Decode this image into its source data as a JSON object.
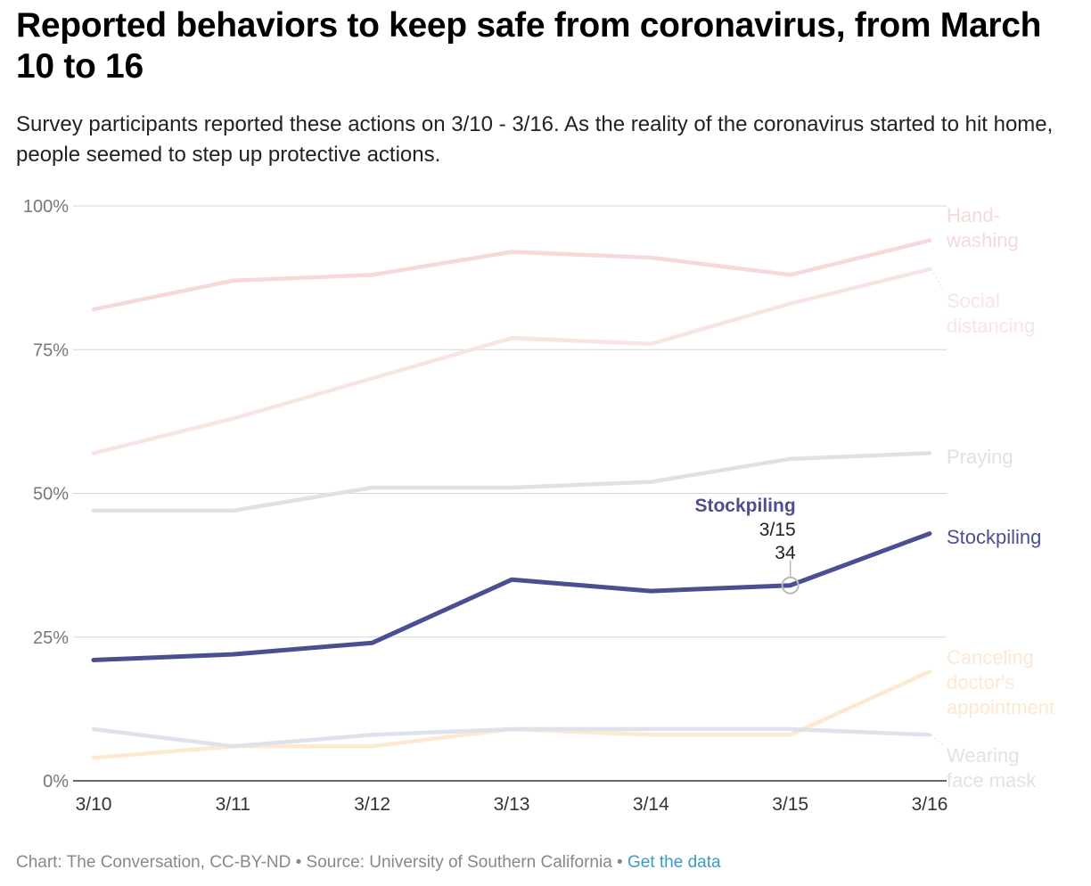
{
  "header": {
    "title": "Reported behaviors to keep safe from coronavirus, from March 10 to 16",
    "subtitle": "Survey participants reported these actions on 3/10 - 3/16. As the reality of the coronavirus started to hit home, people seemed to step up protective actions."
  },
  "footer": {
    "credit": "Chart: The Conversation, CC-BY-ND • Source: University of Southern California • ",
    "link_label": "Get the data"
  },
  "chart_data": {
    "type": "line",
    "categories": [
      "3/10",
      "3/11",
      "3/12",
      "3/13",
      "3/14",
      "3/15",
      "3/16"
    ],
    "y_ticks": [
      "0%",
      "25%",
      "50%",
      "75%",
      "100%"
    ],
    "ylim": [
      0,
      100
    ],
    "grid": true,
    "legend": "direct labels at line ends",
    "series": [
      {
        "name": "Hand-washing",
        "label_lines": [
          "Hand-",
          "washing"
        ],
        "color": "#f6d9d9",
        "values": [
          82,
          87,
          88,
          92,
          91,
          88,
          94
        ]
      },
      {
        "name": "Social distancing",
        "label_lines": [
          "Social",
          "distancing"
        ],
        "color": "#f9e4e2",
        "values": [
          57,
          63,
          70,
          77,
          76,
          83,
          89
        ]
      },
      {
        "name": "Praying",
        "label_lines": [
          "Praying"
        ],
        "color": "#e1e1e1",
        "values": [
          47,
          47,
          51,
          51,
          52,
          56,
          57
        ]
      },
      {
        "name": "Stockpiling",
        "label_lines": [
          "Stockpiling"
        ],
        "color": "#4a4f91",
        "highlight": true,
        "values": [
          21,
          22,
          24,
          35,
          33,
          34,
          43
        ]
      },
      {
        "name": "Canceling doctor's appointment",
        "label_lines": [
          "Canceling",
          "doctor's",
          "appointment"
        ],
        "color": "#fde8d2",
        "values": [
          4,
          6,
          6,
          9,
          8,
          8,
          19
        ]
      },
      {
        "name": "Wearing face mask",
        "label_lines": [
          "Wearing",
          "face mask"
        ],
        "color": "#dfe2ea",
        "values": [
          9,
          6,
          8,
          9,
          9,
          9,
          8
        ]
      }
    ],
    "tooltip": {
      "series": "Stockpiling",
      "category": "3/15",
      "value": "34"
    }
  }
}
